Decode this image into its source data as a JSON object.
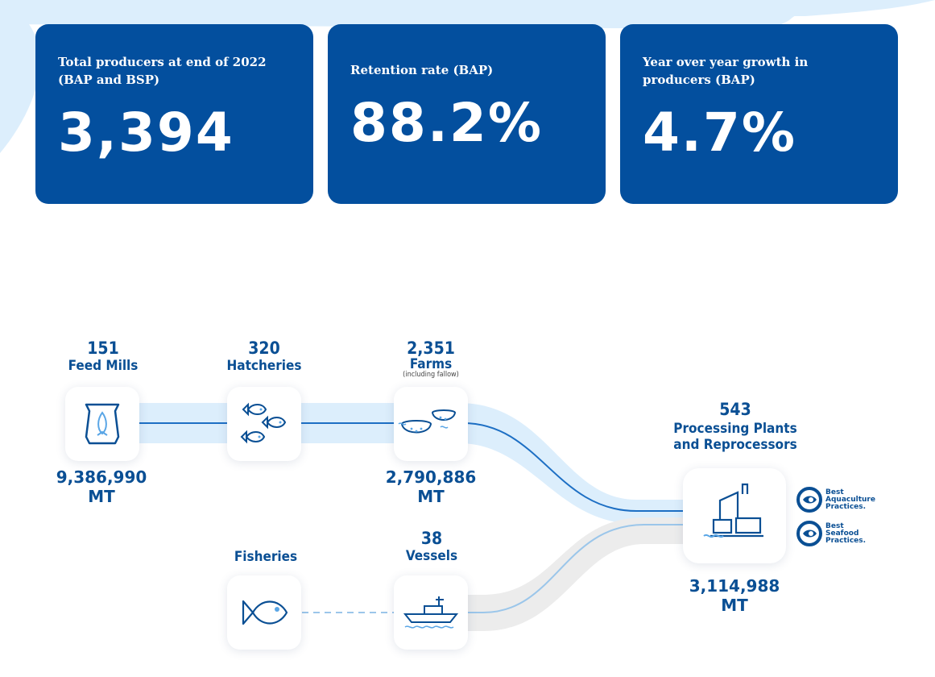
{
  "stats": [
    {
      "label": "Total producers at end of 2022 (BAP and BSP)",
      "value": "3,394"
    },
    {
      "label": "Retention rate (BAP)",
      "value": "88.2%"
    },
    {
      "label": "Year over year growth in producers (BAP)",
      "value": "4.7%"
    }
  ],
  "flow": {
    "feed_mills": {
      "count": "151",
      "name": "Feed Mills",
      "tonnage": "9,386,990 MT"
    },
    "hatcheries": {
      "count": "320",
      "name": "Hatcheries"
    },
    "farms": {
      "count": "2,351",
      "name": "Farms",
      "note": "(including fallow)",
      "tonnage": "2,790,886 MT"
    },
    "processing": {
      "count": "543",
      "name_line1": "Processing Plants",
      "name_line2": "and Reprocessors",
      "tonnage": "3,114,988 MT"
    },
    "fisheries": {
      "name": "Fisheries"
    },
    "vessels": {
      "count": "38",
      "name": "Vessels"
    }
  },
  "logos": {
    "bap": {
      "line1": "Best",
      "line2": "Aquaculture",
      "line3": "Practices."
    },
    "bsp": {
      "line1": "Best",
      "line2": "Seafood",
      "line3": "Practices."
    }
  },
  "colors": {
    "card": "#034f9e",
    "text": "#0a4f94",
    "flow_light": "#dceefc",
    "flow_line": "#1d6fc4",
    "flow_gray": "#ececec"
  }
}
